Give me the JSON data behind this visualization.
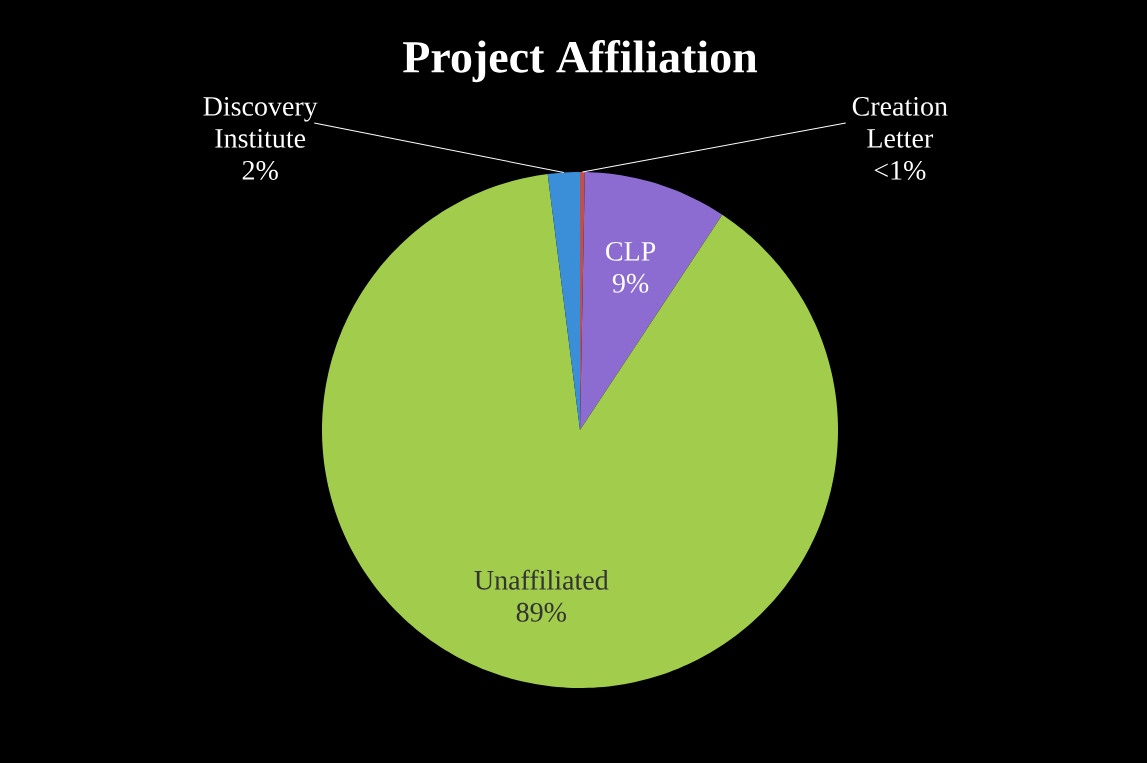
{
  "chart_data": {
    "type": "pie",
    "title": "Project Affiliation",
    "categories": [
      "Creation Letter",
      "CLP",
      "Unaffiliated",
      "Discovery Institute"
    ],
    "values": [
      0.3,
      9,
      88.7,
      2
    ],
    "value_labels": [
      "<1%",
      "9%",
      "89%",
      "2%"
    ],
    "colors": [
      "#c0504d",
      "#8c6cd0",
      "#a2cc4c",
      "#3a8fd8"
    ]
  }
}
